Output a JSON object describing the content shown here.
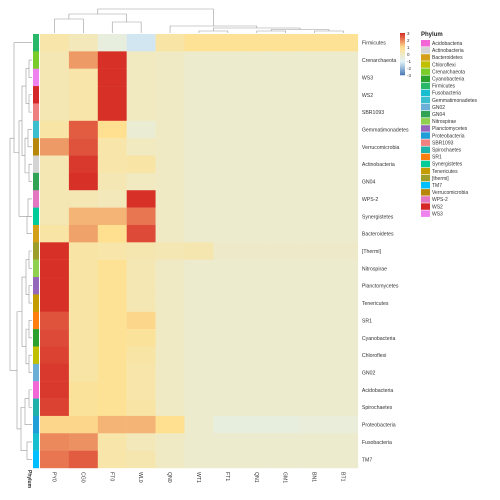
{
  "chart_data": {
    "type": "heatmap",
    "rows": [
      "Firmicutes",
      "Crenarchaeota",
      "WS3",
      "WS2",
      "SBR1093",
      "Gemmatimonadetes",
      "Verrucomicrobia",
      "Actinobacteria",
      "GN04",
      "WPS-2",
      "Synergistetes",
      "Bacteroidetes",
      "[Thermi]",
      "Nitrospirae",
      "Planctomycetes",
      "Tenericutes",
      "SR1",
      "Cyanobacteria",
      "Chloroflexi",
      "GN02",
      "Acidobacteria",
      "Spirochaetes",
      "Proteobacteria",
      "Fusobacteria",
      "TM7"
    ],
    "columns": [
      "PY0",
      "CG0",
      "FT0",
      "WL0",
      "QN0",
      "WT1",
      "FT1",
      "QN1",
      "GM1",
      "BN1",
      "BT1"
    ],
    "values": [
      [
        0.5,
        0.2,
        -0.5,
        -1.2,
        0.6,
        0.9,
        0.9,
        0.9,
        0.9,
        0.9,
        0.9
      ],
      [
        0.3,
        1.8,
        3.0,
        0.1,
        0.0,
        -0.2,
        -0.2,
        -0.2,
        -0.2,
        -0.2,
        -0.2
      ],
      [
        0.3,
        0.5,
        3.0,
        0.1,
        0.0,
        -0.2,
        -0.2,
        -0.2,
        -0.2,
        -0.2,
        -0.2
      ],
      [
        0.3,
        0.5,
        3.0,
        0.1,
        0.0,
        -0.2,
        -0.2,
        -0.2,
        -0.2,
        -0.2,
        -0.2
      ],
      [
        0.3,
        0.5,
        3.0,
        0.1,
        0.0,
        -0.2,
        -0.2,
        -0.2,
        -0.2,
        -0.2,
        -0.2
      ],
      [
        0.6,
        2.5,
        1.0,
        -0.3,
        0.0,
        -0.2,
        -0.2,
        -0.2,
        -0.2,
        -0.2,
        -0.2
      ],
      [
        1.8,
        2.6,
        0.5,
        0.1,
        0.0,
        -0.2,
        -0.2,
        -0.2,
        -0.2,
        -0.2,
        -0.2
      ],
      [
        0.3,
        2.9,
        0.5,
        0.6,
        0.0,
        -0.2,
        -0.2,
        -0.2,
        -0.2,
        -0.2,
        -0.2
      ],
      [
        0.3,
        3.0,
        0.3,
        0.1,
        0.0,
        -0.2,
        -0.2,
        -0.2,
        -0.2,
        -0.2,
        -0.2
      ],
      [
        0.3,
        0.3,
        0.2,
        3.0,
        0.0,
        -0.2,
        -0.2,
        -0.2,
        -0.2,
        -0.2,
        -0.2
      ],
      [
        0.3,
        1.5,
        1.5,
        2.2,
        0.0,
        -0.2,
        -0.2,
        -0.2,
        -0.2,
        -0.2,
        -0.2
      ],
      [
        0.6,
        1.7,
        1.0,
        2.7,
        0.0,
        -0.2,
        -0.2,
        -0.2,
        -0.2,
        -0.2,
        -0.2
      ],
      [
        3.0,
        0.6,
        0.5,
        0.4,
        0.3,
        0.4,
        -0.1,
        -0.1,
        -0.1,
        -0.1,
        -0.1
      ],
      [
        3.0,
        0.6,
        0.9,
        0.3,
        0.0,
        -0.2,
        -0.2,
        -0.2,
        -0.2,
        -0.2,
        -0.2
      ],
      [
        3.0,
        0.6,
        0.9,
        0.3,
        0.0,
        -0.2,
        -0.2,
        -0.2,
        -0.2,
        -0.2,
        -0.2
      ],
      [
        3.0,
        0.6,
        0.9,
        0.3,
        0.0,
        -0.2,
        -0.2,
        -0.2,
        -0.2,
        -0.2,
        -0.2
      ],
      [
        2.6,
        0.6,
        0.9,
        1.1,
        0.0,
        -0.2,
        -0.2,
        -0.2,
        -0.2,
        -0.2,
        -0.2
      ],
      [
        2.7,
        0.6,
        0.9,
        0.8,
        0.0,
        -0.2,
        -0.2,
        -0.2,
        -0.2,
        -0.2,
        -0.2
      ],
      [
        2.8,
        0.6,
        0.9,
        0.6,
        0.0,
        -0.2,
        -0.2,
        -0.2,
        -0.2,
        -0.2,
        -0.2
      ],
      [
        2.9,
        0.6,
        0.9,
        0.5,
        0.0,
        -0.2,
        -0.2,
        -0.2,
        -0.2,
        -0.2,
        -0.2
      ],
      [
        2.9,
        0.8,
        0.9,
        0.5,
        0.0,
        -0.2,
        -0.2,
        -0.2,
        -0.2,
        -0.2,
        -0.2
      ],
      [
        2.8,
        0.8,
        0.9,
        0.6,
        0.0,
        -0.2,
        -0.2,
        -0.2,
        -0.2,
        -0.2,
        -0.2
      ],
      [
        1.1,
        1.1,
        1.5,
        1.5,
        1.0,
        -0.2,
        -0.5,
        -0.5,
        -0.5,
        -0.4,
        -0.4
      ],
      [
        2.0,
        1.9,
        0.5,
        0.2,
        0.0,
        -0.2,
        -0.2,
        -0.2,
        -0.2,
        -0.2,
        -0.2
      ],
      [
        2.2,
        2.5,
        0.5,
        0.4,
        0.0,
        -0.2,
        -0.2,
        -0.2,
        -0.2,
        -0.2,
        -0.2
      ]
    ],
    "row_phylum": [
      "Firmicutes",
      "Crenarchaeota",
      "WS3",
      "WS2",
      "SBR1093",
      "Gemmatimonadetes",
      "Verrucomicrobia",
      "Actinobacteria",
      "GN04",
      "WPS-2",
      "Synergistetes",
      "Bacteroidetes",
      "[thermi]",
      "Nitrospirae",
      "Planctomycetes",
      "Tenericutes",
      "SR1",
      "Cyanobacteria",
      "Chloroflexi",
      "GN02",
      "Acidobacteria",
      "Spirochaetes",
      "Proteobacteria",
      "Fusobacteria",
      "TM7"
    ],
    "annotation_label": "Phylum",
    "colorbar_ticks": [
      "3",
      "2",
      "1",
      "0",
      "-1",
      "-2",
      "-3"
    ],
    "colorbar_range": [
      -3,
      3
    ],
    "colorbar_colors": [
      "#4575b4",
      "#e0f3f8",
      "#fee090",
      "#d73027"
    ],
    "legend_title": "Phylum",
    "legend": [
      {
        "name": "Acidobacteria",
        "color": "#f266d6"
      },
      {
        "name": "Actinobacteria",
        "color": "#d4d4d4"
      },
      {
        "name": "Bacteroidetes",
        "color": "#d4a017"
      },
      {
        "name": "Chloroflexi",
        "color": "#c0c000"
      },
      {
        "name": "Crenarchaeota",
        "color": "#7acc2a"
      },
      {
        "name": "Cyanobacteria",
        "color": "#2ca02c"
      },
      {
        "name": "Firmicutes",
        "color": "#29b86a"
      },
      {
        "name": "Fusobacteria",
        "color": "#17becf"
      },
      {
        "name": "Gemmatimonadetes",
        "color": "#3bbfcf"
      },
      {
        "name": "GN02",
        "color": "#6baed6"
      },
      {
        "name": "GN04",
        "color": "#31a354"
      },
      {
        "name": "Nitrospirae",
        "color": "#8fd14f"
      },
      {
        "name": "Planctomycetes",
        "color": "#9467bd"
      },
      {
        "name": "Proteobacteria",
        "color": "#1f9ed8"
      },
      {
        "name": "SBR1093",
        "color": "#f08080"
      },
      {
        "name": "Spirochaetes",
        "color": "#20b2aa"
      },
      {
        "name": "SR1",
        "color": "#ff7f0e"
      },
      {
        "name": "Synergistetes",
        "color": "#00cc99"
      },
      {
        "name": "Tenericutes",
        "color": "#c49c00"
      },
      {
        "name": "[thermi]",
        "color": "#9e9e2a"
      },
      {
        "name": "TM7",
        "color": "#00bfff"
      },
      {
        "name": "Verrucomicrobia",
        "color": "#b8860b"
      },
      {
        "name": "WPS-2",
        "color": "#e377c2"
      },
      {
        "name": "WS2",
        "color": "#d62728"
      },
      {
        "name": "WS3",
        "color": "#ee82ee"
      }
    ]
  }
}
